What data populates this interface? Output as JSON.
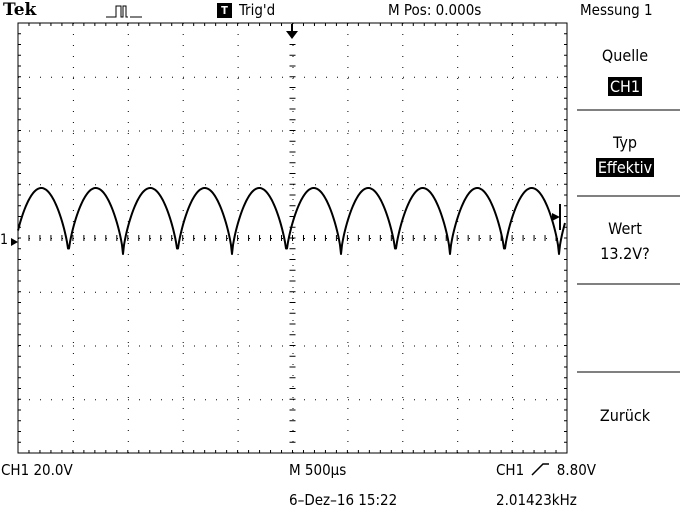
{
  "header": {
    "brand": "Tek",
    "trigger_status": "Trig'd",
    "trigger_box": "T",
    "m_pos": "M Pos: 0.000s",
    "menu_title": "Messung 1"
  },
  "side_menu": {
    "source_label": "Quelle",
    "source_value": "CH1",
    "type_label": "Typ",
    "type_value": "Effektiv",
    "value_label": "Wert",
    "value_value": "13.2V?",
    "back_label": "Zurück"
  },
  "markers": {
    "channel_marker": "1"
  },
  "status": {
    "ch1_scale": "CH1  20.0V",
    "timebase": "M 500µs",
    "trigger_source": "CH1",
    "trigger_level": "8.80V",
    "datetime": "6–Dez–16 15:22",
    "frequency": "2.01423kHz"
  },
  "colors": {
    "trace": "#000000",
    "grid": "#000000",
    "background": "#ffffff"
  }
}
